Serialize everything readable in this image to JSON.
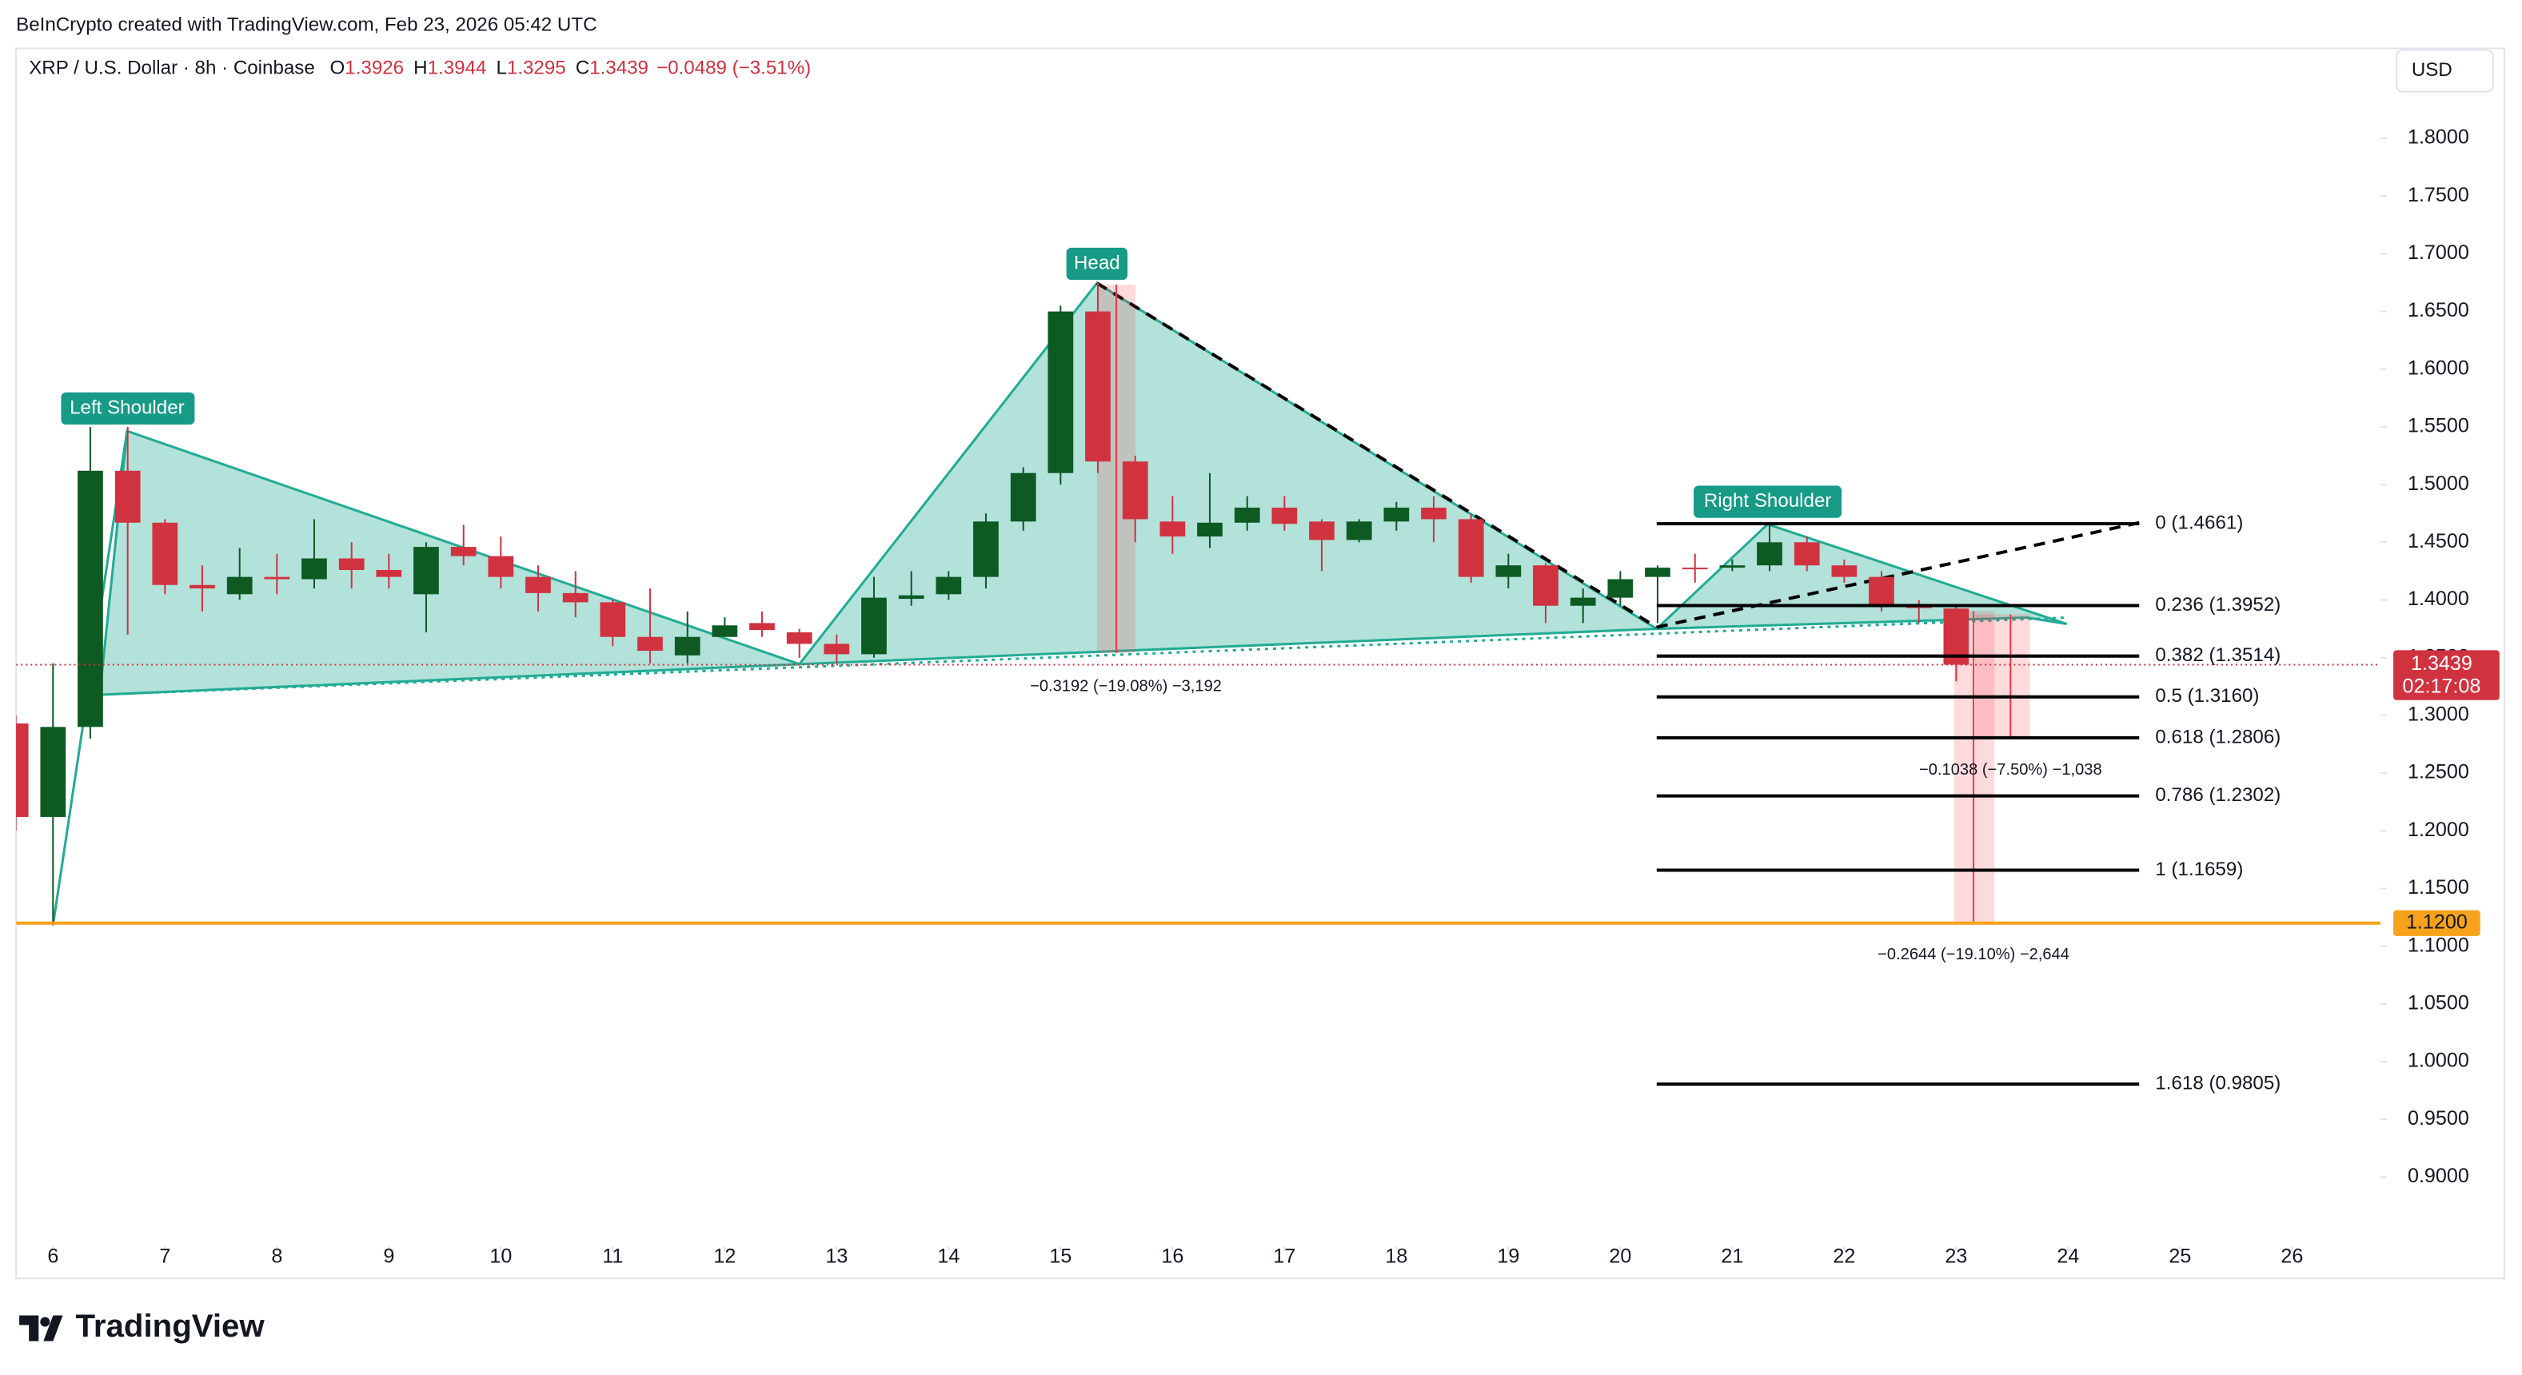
{
  "header": "BeInCrypto created with TradingView.com, Feb 23, 2026 05:42 UTC",
  "footer": "TradingView",
  "chart_data": {
    "type": "candlestick",
    "title": "XRP / U.S. Dollar · 8h · Coinbase",
    "ohlc_legend": [
      {
        "key": "O",
        "value": 1.3926
      },
      {
        "key": "H",
        "value": 1.3944
      },
      {
        "key": "L",
        "value": 1.3295
      },
      {
        "key": "C",
        "value": 1.3439
      }
    ],
    "change": "−0.0489 (−3.51%)",
    "currency": "USD",
    "x": [
      5.667,
      6,
      6.333,
      6.667,
      7,
      7.333,
      7.667,
      8,
      8.333,
      8.667,
      9,
      9.333,
      9.667,
      10,
      10.333,
      10.667,
      11,
      11.333,
      11.667,
      12,
      12.333,
      12.667,
      13,
      13.333,
      13.667,
      14,
      14.333,
      14.667,
      15,
      15.333,
      15.667,
      16,
      16.333,
      16.667,
      17,
      17.333,
      17.667,
      18,
      18.333,
      18.667,
      19,
      19.333,
      19.667,
      20,
      20.333,
      20.667,
      21,
      21.333,
      21.667,
      22,
      22.333,
      22.667,
      23
    ],
    "open": [
      1.293,
      1.212,
      1.29,
      1.512,
      1.467,
      1.413,
      1.405,
      1.42,
      1.418,
      1.436,
      1.426,
      1.405,
      1.446,
      1.438,
      1.42,
      1.406,
      1.398,
      1.368,
      1.352,
      1.368,
      1.38,
      1.372,
      1.362,
      1.353,
      1.401,
      1.405,
      1.42,
      1.468,
      1.51,
      1.65,
      1.52,
      1.468,
      1.455,
      1.467,
      1.48,
      1.468,
      1.452,
      1.468,
      1.48,
      1.47,
      1.42,
      1.43,
      1.395,
      1.402,
      1.42,
      1.428,
      1.428,
      1.43,
      1.45,
      1.43,
      1.42,
      1.395,
      1.3926
    ],
    "high": [
      1.3,
      1.345,
      1.55,
      1.55,
      1.47,
      1.43,
      1.445,
      1.44,
      1.47,
      1.45,
      1.44,
      1.45,
      1.465,
      1.455,
      1.43,
      1.425,
      1.4,
      1.41,
      1.39,
      1.385,
      1.39,
      1.375,
      1.37,
      1.42,
      1.425,
      1.425,
      1.475,
      1.515,
      1.655,
      1.675,
      1.525,
      1.49,
      1.51,
      1.49,
      1.49,
      1.47,
      1.47,
      1.485,
      1.49,
      1.475,
      1.44,
      1.432,
      1.41,
      1.425,
      1.43,
      1.44,
      1.435,
      1.465,
      1.455,
      1.435,
      1.425,
      1.4,
      1.3944
    ],
    "low": [
      1.2,
      1.118,
      1.28,
      1.37,
      1.405,
      1.39,
      1.4,
      1.405,
      1.41,
      1.41,
      1.41,
      1.372,
      1.43,
      1.41,
      1.39,
      1.385,
      1.36,
      1.345,
      1.345,
      1.37,
      1.368,
      1.35,
      1.345,
      1.35,
      1.395,
      1.4,
      1.41,
      1.46,
      1.5,
      1.51,
      1.45,
      1.44,
      1.445,
      1.46,
      1.46,
      1.425,
      1.45,
      1.46,
      1.45,
      1.415,
      1.41,
      1.38,
      1.38,
      1.395,
      1.38,
      1.415,
      1.425,
      1.425,
      1.425,
      1.415,
      1.39,
      1.38,
      1.3295
    ],
    "close": [
      1.212,
      1.29,
      1.512,
      1.467,
      1.413,
      1.41,
      1.42,
      1.418,
      1.436,
      1.426,
      1.42,
      1.446,
      1.438,
      1.42,
      1.406,
      1.398,
      1.368,
      1.356,
      1.368,
      1.378,
      1.374,
      1.362,
      1.353,
      1.402,
      1.404,
      1.42,
      1.468,
      1.51,
      1.65,
      1.52,
      1.47,
      1.455,
      1.467,
      1.48,
      1.466,
      1.452,
      1.468,
      1.48,
      1.47,
      1.42,
      1.43,
      1.395,
      1.402,
      1.418,
      1.428,
      1.427,
      1.43,
      1.45,
      1.43,
      1.42,
      1.395,
      1.393,
      1.3439
    ],
    "up_color": "#0d5a22",
    "down_color": "#d1323f",
    "xlim": [
      5.67,
      26.79
    ],
    "xticks": [
      6,
      7,
      8,
      9,
      10,
      11,
      12,
      13,
      14,
      15,
      16,
      17,
      18,
      19,
      20,
      21,
      22,
      23,
      24,
      25,
      26
    ],
    "ylim": [
      0.84,
      1.878
    ],
    "yticks": [
      {
        "value": 0.9,
        "label": "0.9000"
      },
      {
        "value": 0.95,
        "label": "0.9500"
      },
      {
        "value": 1.0,
        "label": "1.0000"
      },
      {
        "value": 1.05,
        "label": "1.0500"
      },
      {
        "value": 1.1,
        "label": "1.1000"
      },
      {
        "value": 1.15,
        "label": "1.1500"
      },
      {
        "value": 1.2,
        "label": "1.2000"
      },
      {
        "value": 1.25,
        "label": "1.2500"
      },
      {
        "value": 1.3,
        "label": "1.3000"
      },
      {
        "value": 1.35,
        "label": "1.3500"
      },
      {
        "value": 1.4,
        "label": "1.4000"
      },
      {
        "value": 1.45,
        "label": "1.4500"
      },
      {
        "value": 1.5,
        "label": "1.5000"
      },
      {
        "value": 1.55,
        "label": "1.5500"
      },
      {
        "value": 1.6,
        "label": "1.6000"
      },
      {
        "value": 1.65,
        "label": "1.6500"
      },
      {
        "value": 1.7,
        "label": "1.7000"
      },
      {
        "value": 1.75,
        "label": "1.7500"
      },
      {
        "value": 1.8,
        "label": "1.8000"
      }
    ],
    "fib_levels": [
      {
        "value": 1.4661,
        "label": "0 (1.4661)"
      },
      {
        "value": 1.3952,
        "label": "0.236 (1.3952)"
      },
      {
        "value": 1.3514,
        "label": "0.382 (1.3514)"
      },
      {
        "value": 1.316,
        "label": "0.5 (1.3160)"
      },
      {
        "value": 1.2806,
        "label": "0.618 (1.2806)"
      },
      {
        "value": 1.2302,
        "label": "0.786 (1.2302)"
      },
      {
        "value": 1.1659,
        "label": "1 (1.1659)"
      },
      {
        "value": 0.9805,
        "label": "1.618 (0.9805)"
      }
    ],
    "hline": {
      "value": 1.12,
      "label": "1.1200",
      "color": "#f7a21b"
    },
    "last_price": {
      "value": 1.3439,
      "countdown": "02:17:08"
    },
    "annotations": [
      "Left Shoulder",
      "Head",
      "Right Shoulder"
    ],
    "measurements": [
      "−0.3192 (−19.08%) −3,192",
      "−0.1038 (−7.50%) −1,038",
      "−0.2644 (−19.10%) −2,644"
    ]
  }
}
